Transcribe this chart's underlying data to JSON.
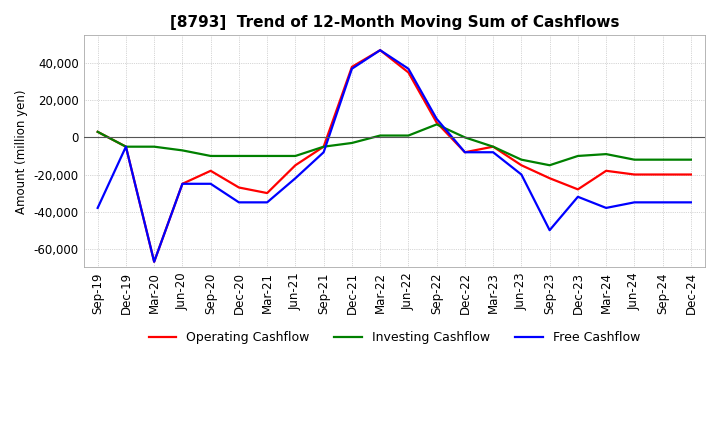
{
  "title": "[8793]  Trend of 12-Month Moving Sum of Cashflows",
  "ylabel": "Amount (million yen)",
  "x_labels": [
    "Sep-19",
    "Dec-19",
    "Mar-20",
    "Jun-20",
    "Sep-20",
    "Dec-20",
    "Mar-21",
    "Jun-21",
    "Sep-21",
    "Dec-21",
    "Mar-22",
    "Jun-22",
    "Sep-22",
    "Dec-22",
    "Mar-23",
    "Jun-23",
    "Sep-23",
    "Dec-23",
    "Mar-24",
    "Jun-24",
    "Sep-24",
    "Dec-24"
  ],
  "operating_cashflow": [
    3000,
    -5000,
    -67000,
    -25000,
    -18000,
    -27000,
    -30000,
    -15000,
    -5000,
    38000,
    47000,
    35000,
    8000,
    -8000,
    -5000,
    -15000,
    -22000,
    -28000,
    -18000,
    -20000,
    -20000,
    -20000
  ],
  "investing_cashflow": [
    3000,
    -5000,
    -5000,
    -7000,
    -10000,
    -10000,
    -10000,
    -10000,
    -5000,
    -3000,
    1000,
    1000,
    7000,
    0,
    -5000,
    -12000,
    -15000,
    -10000,
    -9000,
    -12000,
    -12000,
    -12000
  ],
  "free_cashflow": [
    -38000,
    -5000,
    -67000,
    -25000,
    -25000,
    -35000,
    -35000,
    -22000,
    -8000,
    37000,
    47000,
    37000,
    10000,
    -8000,
    -8000,
    -20000,
    -50000,
    -32000,
    -38000,
    -35000,
    -35000,
    -35000
  ],
  "ylim": [
    -70000,
    55000
  ],
  "yticks": [
    -60000,
    -40000,
    -20000,
    0,
    20000,
    40000
  ],
  "operating_color": "#ff0000",
  "investing_color": "#008000",
  "free_color": "#0000ff",
  "background_color": "#ffffff",
  "grid_color": "#b0b0b0",
  "title_fontsize": 11,
  "axis_fontsize": 8.5,
  "legend_fontsize": 9,
  "linewidth": 1.6
}
